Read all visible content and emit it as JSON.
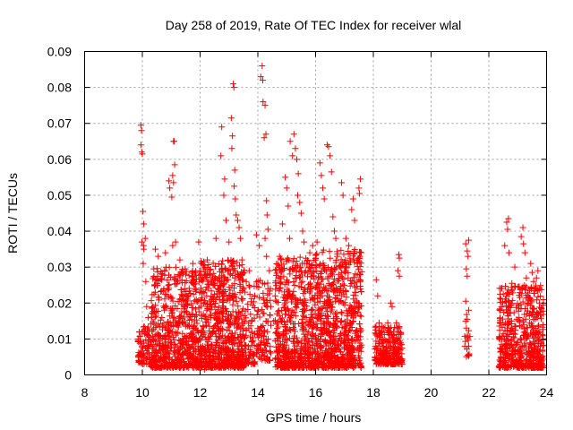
{
  "chart_data": {
    "type": "scatter",
    "title": "Day 258 of 2019, Rate Of TEC Index for receiver wlal",
    "xlabel": "GPS time / hours",
    "ylabel": "ROTI / TECUs",
    "xlim": [
      8,
      24
    ],
    "ylim": [
      0,
      0.09
    ],
    "xticks": [
      "8",
      "10",
      "12",
      "14",
      "16",
      "18",
      "20",
      "22",
      "24"
    ],
    "yticks": [
      "0",
      "0.01",
      "0.02",
      "0.03",
      "0.04",
      "0.05",
      "0.06",
      "0.07",
      "0.08",
      "0.09"
    ],
    "grid": true,
    "marker": "+",
    "color": "#ff0000",
    "series": [
      {
        "name": "ROTI",
        "points": [
          [
            9.95,
            0.0695
          ],
          [
            9.97,
            0.068
          ],
          [
            9.95,
            0.064
          ],
          [
            9.98,
            0.062
          ],
          [
            10.0,
            0.0615
          ],
          [
            10.02,
            0.0455
          ],
          [
            10.05,
            0.042
          ],
          [
            9.98,
            0.037
          ],
          [
            10.04,
            0.036
          ],
          [
            10.1,
            0.038
          ],
          [
            10.05,
            0.035
          ],
          [
            10.03,
            0.031
          ],
          [
            10.12,
            0.026
          ],
          [
            10.15,
            0.019
          ],
          [
            10.2,
            0.016
          ],
          [
            10.45,
            0.035
          ],
          [
            10.55,
            0.033
          ],
          [
            10.7,
            0.028
          ],
          [
            10.8,
            0.034
          ],
          [
            10.92,
            0.054
          ],
          [
            10.95,
            0.052
          ],
          [
            11.05,
            0.0555
          ],
          [
            11.08,
            0.0535
          ],
          [
            11.02,
            0.0495
          ],
          [
            11.12,
            0.0585
          ],
          [
            11.08,
            0.065
          ],
          [
            11.1,
            0.065
          ],
          [
            11.05,
            0.036
          ],
          [
            11.15,
            0.037
          ],
          [
            11.3,
            0.032
          ],
          [
            11.5,
            0.028
          ],
          [
            11.75,
            0.031
          ],
          [
            11.95,
            0.037
          ],
          [
            12.1,
            0.027
          ],
          [
            12.25,
            0.032
          ],
          [
            12.35,
            0.028
          ],
          [
            12.45,
            0.025
          ],
          [
            12.15,
            0.0015
          ],
          [
            12.55,
            0.038
          ],
          [
            12.75,
            0.069
          ],
          [
            12.72,
            0.061
          ],
          [
            12.85,
            0.0545
          ],
          [
            12.82,
            0.05
          ],
          [
            12.9,
            0.043
          ],
          [
            13.0,
            0.037
          ],
          [
            13.08,
            0.0715
          ],
          [
            13.15,
            0.081
          ],
          [
            13.17,
            0.08
          ],
          [
            13.12,
            0.0665
          ],
          [
            13.1,
            0.063
          ],
          [
            13.2,
            0.057
          ],
          [
            13.18,
            0.0525
          ],
          [
            13.22,
            0.049
          ],
          [
            13.25,
            0.0445
          ],
          [
            13.3,
            0.043
          ],
          [
            13.35,
            0.041
          ],
          [
            13.4,
            0.038
          ],
          [
            13.45,
            0.032
          ],
          [
            13.6,
            0.026
          ],
          [
            13.7,
            0.029
          ],
          [
            13.95,
            0.039
          ],
          [
            14.05,
            0.036
          ],
          [
            14.1,
            0.083
          ],
          [
            14.15,
            0.086
          ],
          [
            14.17,
            0.082
          ],
          [
            14.18,
            0.076
          ],
          [
            14.25,
            0.075
          ],
          [
            14.22,
            0.066
          ],
          [
            14.28,
            0.067
          ],
          [
            14.3,
            0.0485
          ],
          [
            14.32,
            0.0445
          ],
          [
            14.35,
            0.0405
          ],
          [
            14.25,
            0.038
          ],
          [
            14.3,
            0.033
          ],
          [
            14.4,
            0.029
          ],
          [
            14.35,
            0.024
          ],
          [
            14.45,
            0.019
          ],
          [
            14.55,
            0.015
          ],
          [
            14.6,
            0.022
          ],
          [
            14.75,
            0.033
          ],
          [
            14.85,
            0.042
          ],
          [
            14.95,
            0.055
          ],
          [
            15.0,
            0.052
          ],
          [
            15.05,
            0.047
          ],
          [
            15.1,
            0.038
          ],
          [
            15.12,
            0.065
          ],
          [
            15.2,
            0.061
          ],
          [
            15.25,
            0.067
          ],
          [
            15.3,
            0.063
          ],
          [
            15.35,
            0.06
          ],
          [
            15.4,
            0.056
          ],
          [
            15.38,
            0.05
          ],
          [
            15.45,
            0.048
          ],
          [
            15.5,
            0.045
          ],
          [
            15.55,
            0.04
          ],
          [
            15.6,
            0.037
          ],
          [
            15.7,
            0.031
          ],
          [
            15.8,
            0.034
          ],
          [
            15.9,
            0.036
          ],
          [
            16.0,
            0.032
          ],
          [
            16.05,
            0.037
          ],
          [
            16.15,
            0.059
          ],
          [
            16.2,
            0.0555
          ],
          [
            16.25,
            0.052
          ],
          [
            16.3,
            0.049
          ],
          [
            16.4,
            0.064
          ],
          [
            16.45,
            0.0635
          ],
          [
            16.5,
            0.061
          ],
          [
            16.55,
            0.0565
          ],
          [
            16.6,
            0.044
          ],
          [
            16.65,
            0.04
          ],
          [
            16.7,
            0.038
          ],
          [
            16.75,
            0.033
          ],
          [
            16.8,
            0.028
          ],
          [
            16.85,
            0.024
          ],
          [
            16.9,
            0.0535
          ],
          [
            16.95,
            0.05
          ],
          [
            17.05,
            0.038
          ],
          [
            17.15,
            0.036
          ],
          [
            17.25,
            0.046
          ],
          [
            17.3,
            0.049
          ],
          [
            17.35,
            0.043
          ],
          [
            17.45,
            0.031
          ],
          [
            17.5,
            0.052
          ],
          [
            17.55,
            0.0545
          ],
          [
            17.52,
            0.0505
          ],
          [
            17.55,
            0.028
          ],
          [
            18.1,
            0.0265
          ],
          [
            18.15,
            0.022
          ],
          [
            18.2,
            0.0145
          ],
          [
            18.3,
            0.0135
          ],
          [
            18.5,
            0.0145
          ],
          [
            18.6,
            0.02
          ],
          [
            18.65,
            0.019
          ],
          [
            18.8,
            0.0145
          ],
          [
            18.85,
            0.029
          ],
          [
            18.9,
            0.0275
          ],
          [
            18.88,
            0.0335
          ],
          [
            18.9,
            0.0325
          ],
          [
            18.85,
            0.0095
          ],
          [
            18.6,
            0.0045
          ],
          [
            18.3,
            0.0055
          ],
          [
            21.2,
            0.0365
          ],
          [
            21.25,
            0.0345
          ],
          [
            21.3,
            0.0375
          ],
          [
            21.28,
            0.033
          ],
          [
            21.22,
            0.0295
          ],
          [
            21.25,
            0.0275
          ],
          [
            21.2,
            0.0205
          ],
          [
            21.3,
            0.018
          ],
          [
            21.25,
            0.0155
          ],
          [
            21.3,
            0.008
          ],
          [
            21.28,
            0.0055
          ],
          [
            22.5,
            0.0225
          ],
          [
            22.55,
            0.036
          ],
          [
            22.62,
            0.0425
          ],
          [
            22.68,
            0.0435
          ],
          [
            22.65,
            0.0405
          ],
          [
            22.7,
            0.034
          ],
          [
            22.8,
            0.0255
          ],
          [
            22.9,
            0.03
          ],
          [
            23.0,
            0.0245
          ],
          [
            23.05,
            0.0245
          ],
          [
            23.12,
            0.0385
          ],
          [
            23.18,
            0.041
          ],
          [
            23.2,
            0.0365
          ],
          [
            23.25,
            0.034
          ],
          [
            23.3,
            0.027
          ],
          [
            23.45,
            0.031
          ],
          [
            23.5,
            0.0285
          ],
          [
            23.55,
            0.026
          ],
          [
            23.65,
            0.027
          ],
          [
            23.7,
            0.029
          ],
          [
            23.75,
            0.02
          ],
          [
            23.8,
            0.0175
          ]
        ],
        "dense_bands": [
          [
            9.85,
            10.3,
            0.003,
            0.0135,
            0.6
          ],
          [
            10.3,
            12.0,
            0.002,
            0.03,
            1.3
          ],
          [
            12.0,
            13.55,
            0.002,
            0.032,
            1.5
          ],
          [
            13.55,
            13.9,
            0.003,
            0.025,
            0.7
          ],
          [
            13.95,
            14.45,
            0.004,
            0.027,
            0.7
          ],
          [
            14.6,
            15.95,
            0.002,
            0.033,
            1.4
          ],
          [
            15.95,
            17.6,
            0.002,
            0.035,
            1.5
          ],
          [
            18.05,
            19.0,
            0.003,
            0.0135,
            0.9
          ],
          [
            21.15,
            21.35,
            0.005,
            0.017,
            0.3
          ],
          [
            22.35,
            23.9,
            0.002,
            0.025,
            1.2
          ]
        ]
      }
    ]
  }
}
